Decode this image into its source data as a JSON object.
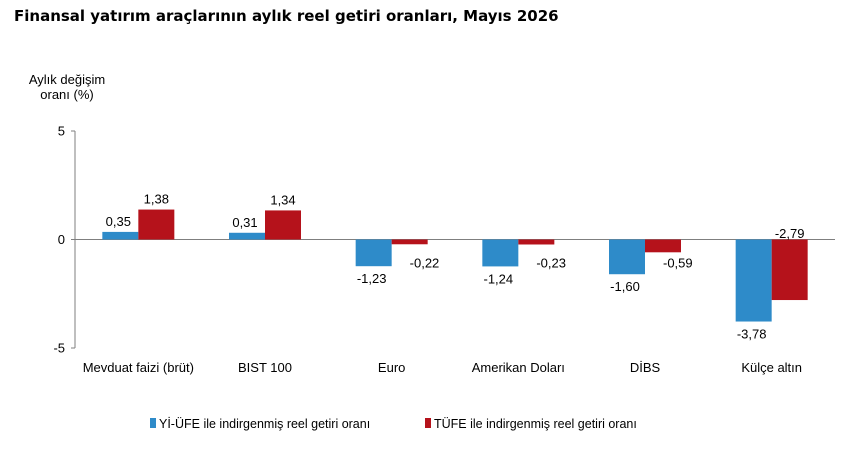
{
  "chart_data": {
    "type": "bar",
    "title": "Finansal yatırım araçlarının aylık reel getiri oranları, Mayıs 2026",
    "ylabel_lines": [
      "Aylık değişim",
      "oranı (%)"
    ],
    "ylim": [
      -5,
      5
    ],
    "yticks": [
      5,
      0,
      -5
    ],
    "categories": [
      "Mevduat faizi (brüt)",
      "BIST 100",
      "Euro",
      "Amerikan Doları",
      "DİBS",
      "Külçe altın"
    ],
    "series": [
      {
        "name": "Yİ-ÜFE ile indirgenmiş reel getiri oranı",
        "color": "#2E8BC9",
        "values": [
          0.35,
          0.31,
          -1.23,
          -1.24,
          -1.6,
          -3.78
        ],
        "labels": [
          "0,35",
          "0,31",
          "-1,23",
          "-1,24",
          "-1,60",
          "-3,78"
        ]
      },
      {
        "name": "TÜFE ile indirgenmiş reel getiri oranı",
        "color": "#B5121B",
        "values": [
          1.38,
          1.34,
          -0.22,
          -0.23,
          -0.59,
          -2.79
        ],
        "labels": [
          "1,38",
          "1,34",
          "-0,22",
          "-0,23",
          "-0,59",
          "-2,79"
        ]
      }
    ],
    "grid": false,
    "legend_position": "bottom"
  }
}
